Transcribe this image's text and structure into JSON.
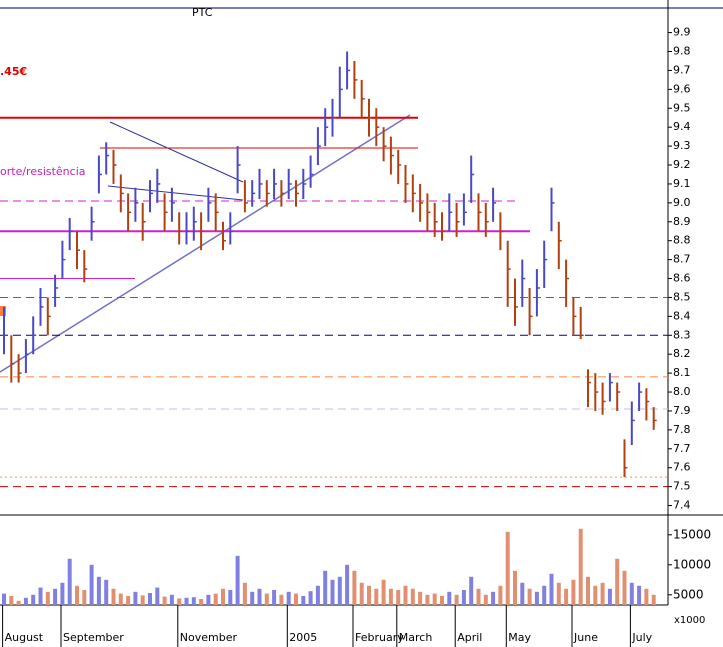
{
  "chart_data": {
    "type": "hlc",
    "title": "PTC",
    "annotations": [
      ".45€",
      "orte/resistência"
    ],
    "categories": [
      null,
      null,
      "August",
      null,
      null,
      null,
      null,
      null,
      null,
      null,
      "September",
      null,
      null,
      null,
      null,
      null,
      null,
      null,
      null,
      null,
      null,
      null,
      null,
      null,
      null,
      null,
      "November",
      null,
      null,
      null,
      null,
      null,
      null,
      null,
      null,
      null,
      null,
      null,
      null,
      null,
      null,
      "2005",
      null,
      null,
      null,
      null,
      null,
      null,
      null,
      null,
      "February",
      null,
      null,
      null,
      null,
      null,
      "March",
      null,
      null,
      null,
      null,
      null,
      null,
      null,
      "April",
      null,
      null,
      null,
      null,
      null,
      null,
      "May",
      null,
      null,
      null,
      null,
      null,
      null,
      null,
      null,
      "June",
      null,
      null,
      null,
      null,
      null,
      null,
      null,
      "July",
      null
    ],
    "close": [
      8.3,
      8.15,
      8.1,
      8.2,
      8.3,
      8.45,
      8.4,
      8.55,
      8.7,
      8.85,
      8.75,
      8.65,
      8.9,
      9.15,
      9.25,
      9.2,
      9.05,
      8.95,
      9.0,
      8.9,
      9.05,
      9.1,
      8.95,
      9.0,
      8.85,
      8.85,
      8.9,
      8.85,
      9.0,
      8.95,
      8.8,
      8.85,
      9.2,
      9.0,
      9.05,
      9.1,
      9.05,
      9.1,
      9.05,
      9.1,
      9.05,
      9.1,
      9.15,
      9.3,
      9.4,
      9.45,
      9.6,
      9.7,
      9.65,
      9.55,
      9.45,
      9.4,
      9.3,
      9.25,
      9.2,
      9.1,
      9.05,
      9.0,
      8.95,
      8.9,
      8.85,
      8.95,
      8.9,
      8.95,
      9.15,
      8.95,
      8.9,
      9.0,
      8.85,
      8.65,
      8.45,
      8.6,
      8.4,
      8.55,
      8.7,
      9.0,
      8.8,
      8.6,
      8.4,
      8.3,
      8.05,
      8.0,
      7.95,
      8.05,
      8.0,
      7.6,
      7.85,
      8.0,
      7.95,
      7.85
    ],
    "high": [
      8.45,
      8.3,
      8.2,
      8.28,
      8.4,
      8.55,
      8.5,
      8.62,
      8.8,
      8.92,
      8.85,
      8.75,
      8.98,
      9.25,
      9.32,
      9.28,
      9.15,
      9.05,
      9.08,
      9.0,
      9.12,
      9.18,
      9.05,
      9.08,
      8.95,
      8.95,
      8.98,
      8.95,
      9.08,
      9.05,
      8.9,
      8.95,
      9.3,
      9.12,
      9.12,
      9.18,
      9.12,
      9.18,
      9.12,
      9.18,
      9.12,
      9.18,
      9.25,
      9.4,
      9.5,
      9.55,
      9.72,
      9.8,
      9.75,
      9.65,
      9.55,
      9.5,
      9.4,
      9.35,
      9.28,
      9.2,
      9.15,
      9.1,
      9.05,
      9.0,
      8.95,
      9.05,
      9.0,
      9.05,
      9.25,
      9.05,
      9.0,
      9.08,
      8.95,
      8.8,
      8.6,
      8.7,
      8.55,
      8.65,
      8.8,
      9.08,
      8.9,
      8.7,
      8.5,
      8.45,
      8.12,
      8.1,
      8.05,
      8.1,
      8.05,
      7.75,
      7.95,
      8.05,
      8.02,
      7.92
    ],
    "low": [
      8.2,
      8.05,
      8.05,
      8.1,
      8.2,
      8.35,
      8.3,
      8.45,
      8.6,
      8.75,
      8.65,
      8.58,
      8.8,
      9.05,
      9.15,
      9.1,
      8.95,
      8.85,
      8.9,
      8.8,
      8.95,
      9.0,
      8.85,
      8.9,
      8.78,
      8.78,
      8.8,
      8.75,
      8.9,
      8.85,
      8.75,
      8.78,
      9.05,
      8.95,
      8.98,
      9.02,
      8.98,
      9.02,
      8.98,
      9.02,
      8.98,
      9.02,
      9.08,
      9.2,
      9.3,
      9.35,
      9.45,
      9.6,
      9.55,
      9.45,
      9.35,
      9.3,
      9.22,
      9.15,
      9.1,
      9.0,
      8.95,
      8.9,
      8.85,
      8.82,
      8.8,
      8.85,
      8.82,
      8.88,
      9.0,
      8.85,
      8.82,
      8.9,
      8.75,
      8.45,
      8.35,
      8.45,
      8.3,
      8.4,
      8.55,
      8.85,
      8.65,
      8.45,
      8.3,
      8.28,
      7.92,
      7.9,
      7.88,
      7.95,
      7.9,
      7.55,
      7.72,
      7.9,
      7.85,
      7.8
    ],
    "up_color": "#4848c8",
    "down_color": "#b04010",
    "ylim": [
      7.35,
      10.03
    ],
    "yticks": [
      7.4,
      7.5,
      7.6,
      7.7,
      7.8,
      7.9,
      {
        "value": 8.0,
        "label": "8.0"
      },
      8.1,
      8.2,
      8.3,
      8.4,
      8.5,
      8.6,
      8.7,
      8.8,
      8.9,
      {
        "value": 9.0,
        "label": "9.0"
      },
      9.1,
      9.2,
      9.3,
      9.4,
      9.5,
      9.6,
      9.7,
      9.8,
      9.9
    ],
    "levels": [
      {
        "value": 9.45,
        "color": "#e00000",
        "style": "solid",
        "width": 2
      },
      {
        "value": 9.29,
        "color": "#e00000",
        "style": "solid",
        "width": 1
      },
      {
        "value": 9.01,
        "color": "#d020d0",
        "style": "dashed",
        "width": 1
      },
      {
        "value": 8.85,
        "color": "#d020d0",
        "style": "solid",
        "width": 2
      },
      {
        "value": 8.6,
        "color": "#d020d0",
        "style": "solid",
        "width": 1
      },
      {
        "value": 8.5,
        "color": "#208080",
        "style": "dashed",
        "width": 1
      },
      {
        "value": 8.3,
        "color": "#000080",
        "style": "dashed",
        "width": 1
      },
      {
        "value": 8.08,
        "color": "#ff8040",
        "style": "dashed",
        "width": 1
      },
      {
        "value": 7.91,
        "color": "#c0c0e0",
        "style": "dashed",
        "width": 1
      },
      {
        "value": 7.55,
        "color": "#e0a060",
        "style": "dotted",
        "width": 1
      },
      {
        "value": 7.5,
        "color": "#c00000",
        "style": "dashed",
        "width": 1
      }
    ],
    "volume": {
      "values": [
        5200,
        4800,
        4000,
        4500,
        5000,
        6200,
        5500,
        6000,
        7000,
        11000,
        6500,
        5800,
        10000,
        8000,
        7500,
        6000,
        5200,
        4800,
        5500,
        4900,
        5300,
        6200,
        4700,
        5000,
        4400,
        4500,
        4600,
        4300,
        5000,
        5200,
        6000,
        5800,
        11500,
        7000,
        5500,
        6000,
        5200,
        5800,
        5000,
        5500,
        5200,
        4800,
        5600,
        6500,
        9000,
        7500,
        8000,
        10000,
        9000,
        7000,
        6500,
        6000,
        7500,
        6000,
        5800,
        6500,
        6000,
        5500,
        5000,
        5200,
        4800,
        5500,
        5000,
        5800,
        8000,
        6000,
        5000,
        5500,
        6500,
        15500,
        9000,
        7000,
        6000,
        5500,
        6500,
        8500,
        7000,
        6000,
        7500,
        16000,
        8000,
        6500,
        7000,
        6000,
        11000,
        9000,
        7000,
        6500,
        6000,
        5000
      ],
      "up_color": "#8080e0",
      "down_color": "#e09070",
      "ylim": [
        3300,
        18300
      ],
      "yticks": [
        5000,
        10000,
        15000
      ],
      "unit_label": "x1000"
    }
  }
}
